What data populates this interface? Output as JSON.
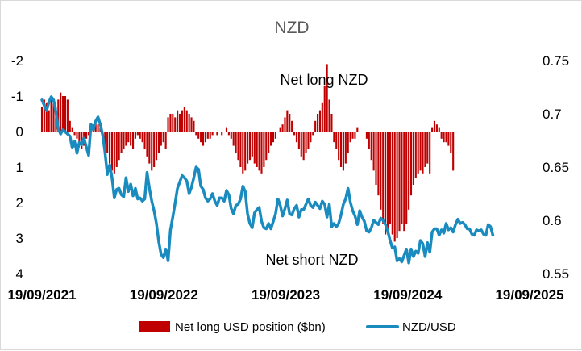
{
  "chart_data": {
    "type": "bar+line",
    "title": "NZD",
    "annotations": [
      "Net long NZD",
      "Net short NZD"
    ],
    "x_tick_labels": [
      "19/09/2021",
      "19/09/2022",
      "19/09/2023",
      "19/09/2024",
      "19/09/2025"
    ],
    "left_axis": {
      "ticks": [
        "-2",
        "-1",
        "0",
        "1",
        "2",
        "3",
        "4"
      ],
      "range": [
        -2,
        4
      ],
      "inverted": true
    },
    "right_axis": {
      "ticks": [
        "0.75",
        "0.7",
        "0.65",
        "0.6",
        "0.55"
      ],
      "range": [
        0.55,
        0.75
      ]
    },
    "legend": {
      "position": "bottom"
    },
    "grid": false,
    "series": [
      {
        "name": "Net long USD position ($bn)",
        "type": "bar",
        "axis": "left",
        "color": "#c00000",
        "x_start": "2021-09-19",
        "step_days": 7,
        "values": [
          -0.7,
          -0.9,
          -0.8,
          -0.6,
          -1.0,
          -0.8,
          -0.7,
          -0.9,
          -1.1,
          -1.0,
          -1.0,
          -0.9,
          -0.3,
          -0.1,
          0.1,
          0.2,
          0.3,
          0.5,
          0.4,
          0.2,
          0.1,
          -0.1,
          -0.2,
          -0.3,
          -0.2,
          -0.1,
          0.2,
          0.4,
          0.6,
          0.9,
          1.1,
          1.2,
          1.0,
          0.8,
          0.6,
          0.5,
          0.4,
          0.3,
          0.4,
          0.5,
          0.2,
          0.1,
          0.2,
          0.3,
          0.5,
          0.7,
          0.9,
          1.1,
          1.0,
          0.8,
          0.6,
          0.4,
          0.3,
          0.5,
          -0.4,
          -0.5,
          -0.5,
          -0.4,
          -0.6,
          -0.5,
          -0.6,
          -0.7,
          -0.6,
          -0.5,
          -0.4,
          -0.3,
          0.1,
          0.2,
          0.3,
          0.4,
          0.3,
          0.2,
          0.2,
          0.1,
          0.0,
          0.1,
          0.0,
          0.1,
          0.0,
          -0.1,
          0.1,
          0.2,
          0.4,
          0.6,
          0.8,
          1.0,
          1.2,
          1.1,
          0.9,
          0.8,
          0.7,
          0.9,
          1.0,
          1.1,
          1.2,
          1.0,
          0.8,
          0.6,
          0.4,
          0.3,
          0.2,
          0.0,
          -0.1,
          -0.2,
          -0.4,
          -0.6,
          -0.5,
          -0.3,
          0.1,
          0.3,
          0.5,
          0.7,
          0.8,
          0.6,
          0.5,
          0.3,
          0.1,
          -0.3,
          -0.5,
          -0.6,
          -0.8,
          -1.3,
          -1.9,
          -0.9,
          -0.5,
          0.3,
          0.5,
          0.8,
          1.0,
          1.1,
          0.9,
          0.6,
          0.3,
          0.2,
          0.2,
          -0.1,
          0.0,
          0.0,
          0.0,
          0.2,
          0.5,
          0.8,
          1.1,
          1.5,
          1.8,
          2.2,
          2.6,
          2.9,
          2.8,
          2.6,
          2.9,
          3.1,
          3.0,
          2.8,
          2.6,
          2.8,
          2.6,
          2.2,
          1.8,
          1.5,
          1.3,
          1.2,
          1.1,
          1.2,
          1.0,
          0.9,
          1.2,
          -0.1,
          -0.3,
          -0.2,
          -0.1,
          0.2,
          0.3,
          0.3,
          0.4,
          0.6,
          1.1
        ]
      },
      {
        "name": "NZD/USD",
        "type": "line",
        "axis": "right",
        "color": "#1a8bbf",
        "x_start": "2021-09-19",
        "step_days": 7,
        "values": [
          0.713,
          0.708,
          0.703,
          0.711,
          0.716,
          0.713,
          0.702,
          0.686,
          0.681,
          0.685,
          0.683,
          0.681,
          0.679,
          0.668,
          0.674,
          0.663,
          0.673,
          0.671,
          0.677,
          0.669,
          0.661,
          0.69,
          0.685,
          0.693,
          0.697,
          0.69,
          0.68,
          0.664,
          0.643,
          0.652,
          0.64,
          0.621,
          0.629,
          0.63,
          0.624,
          0.622,
          0.64,
          0.627,
          0.634,
          0.623,
          0.63,
          0.62,
          0.621,
          0.618,
          0.62,
          0.645,
          0.63,
          0.618,
          0.609,
          0.597,
          0.58,
          0.568,
          0.565,
          0.573,
          0.562,
          0.591,
          0.603,
          0.616,
          0.63,
          0.636,
          0.642,
          0.64,
          0.637,
          0.625,
          0.631,
          0.64,
          0.65,
          0.648,
          0.632,
          0.629,
          0.621,
          0.618,
          0.62,
          0.625,
          0.618,
          0.614,
          0.621,
          0.621,
          0.618,
          0.628,
          0.624,
          0.611,
          0.606,
          0.614,
          0.615,
          0.62,
          0.632,
          0.627,
          0.606,
          0.597,
          0.593,
          0.607,
          0.61,
          0.612,
          0.599,
          0.593,
          0.592,
          0.597,
          0.592,
          0.599,
          0.606,
          0.62,
          0.614,
          0.604,
          0.611,
          0.619,
          0.606,
          0.605,
          0.611,
          0.614,
          0.603,
          0.61,
          0.61,
          0.615,
          0.62,
          0.614,
          0.612,
          0.617,
          0.614,
          0.611,
          0.618,
          0.615,
          0.603,
          0.615,
          0.594,
          0.597,
          0.594,
          0.597,
          0.605,
          0.615,
          0.62,
          0.63,
          0.617,
          0.609,
          0.604,
          0.596,
          0.609,
          0.603,
          0.599,
          0.59,
          0.589,
          0.593,
          0.6,
          0.598,
          0.596,
          0.602,
          0.6,
          0.596,
          0.59,
          0.581,
          0.574,
          0.575,
          0.562,
          0.564,
          0.561,
          0.567,
          0.573,
          0.56,
          0.573,
          0.566,
          0.571,
          0.569,
          0.581,
          0.578,
          0.566,
          0.579,
          0.57,
          0.589,
          0.592,
          0.592,
          0.586,
          0.591,
          0.588,
          0.597,
          0.591,
          0.593,
          0.589,
          0.596,
          0.601,
          0.597,
          0.598,
          0.596,
          0.592,
          0.592,
          0.587,
          0.586,
          0.591,
          0.59,
          0.591,
          0.587,
          0.586,
          0.596,
          0.594,
          0.586
        ]
      }
    ]
  }
}
